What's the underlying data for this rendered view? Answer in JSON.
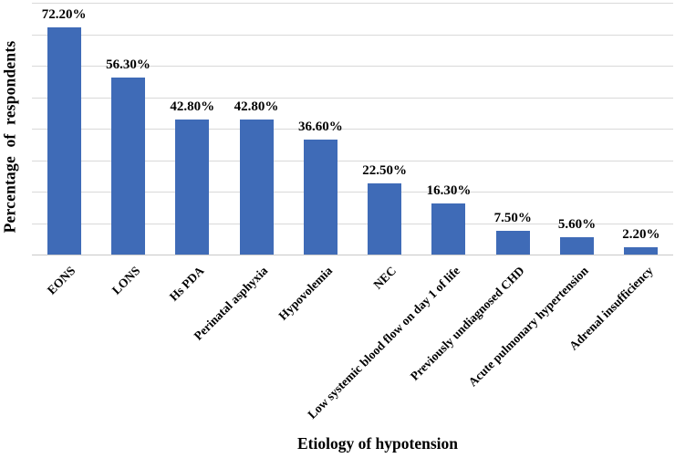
{
  "chart_data": {
    "type": "bar",
    "title": "",
    "xlabel": "Etiology of hypotension",
    "ylabel": "Percentage of respondents",
    "categories": [
      "EONS",
      "LONS",
      "Hs PDA",
      "Perinatal asphyxia",
      "Hypovolemia",
      "NEC",
      "Low systemic blood flow on day 1 of life",
      "Previously undiagnosed CHD",
      "Acute pulmonary hypertension",
      "Adrenal insufficiency"
    ],
    "values": [
      72.2,
      56.3,
      42.8,
      42.8,
      36.6,
      22.5,
      16.3,
      7.5,
      5.6,
      2.2
    ],
    "value_labels": [
      "72.20%",
      "56.30%",
      "42.80%",
      "42.80%",
      "36.60%",
      "22.50%",
      "16.30%",
      "7.50%",
      "5.60%",
      "2.20%"
    ],
    "ylim": [
      0,
      80
    ],
    "gridline_step": 10,
    "grid": true,
    "legend": false,
    "bar_color": "#3F6BB7",
    "gridline_color": "#D9D9D9",
    "text_color": "#000000"
  }
}
